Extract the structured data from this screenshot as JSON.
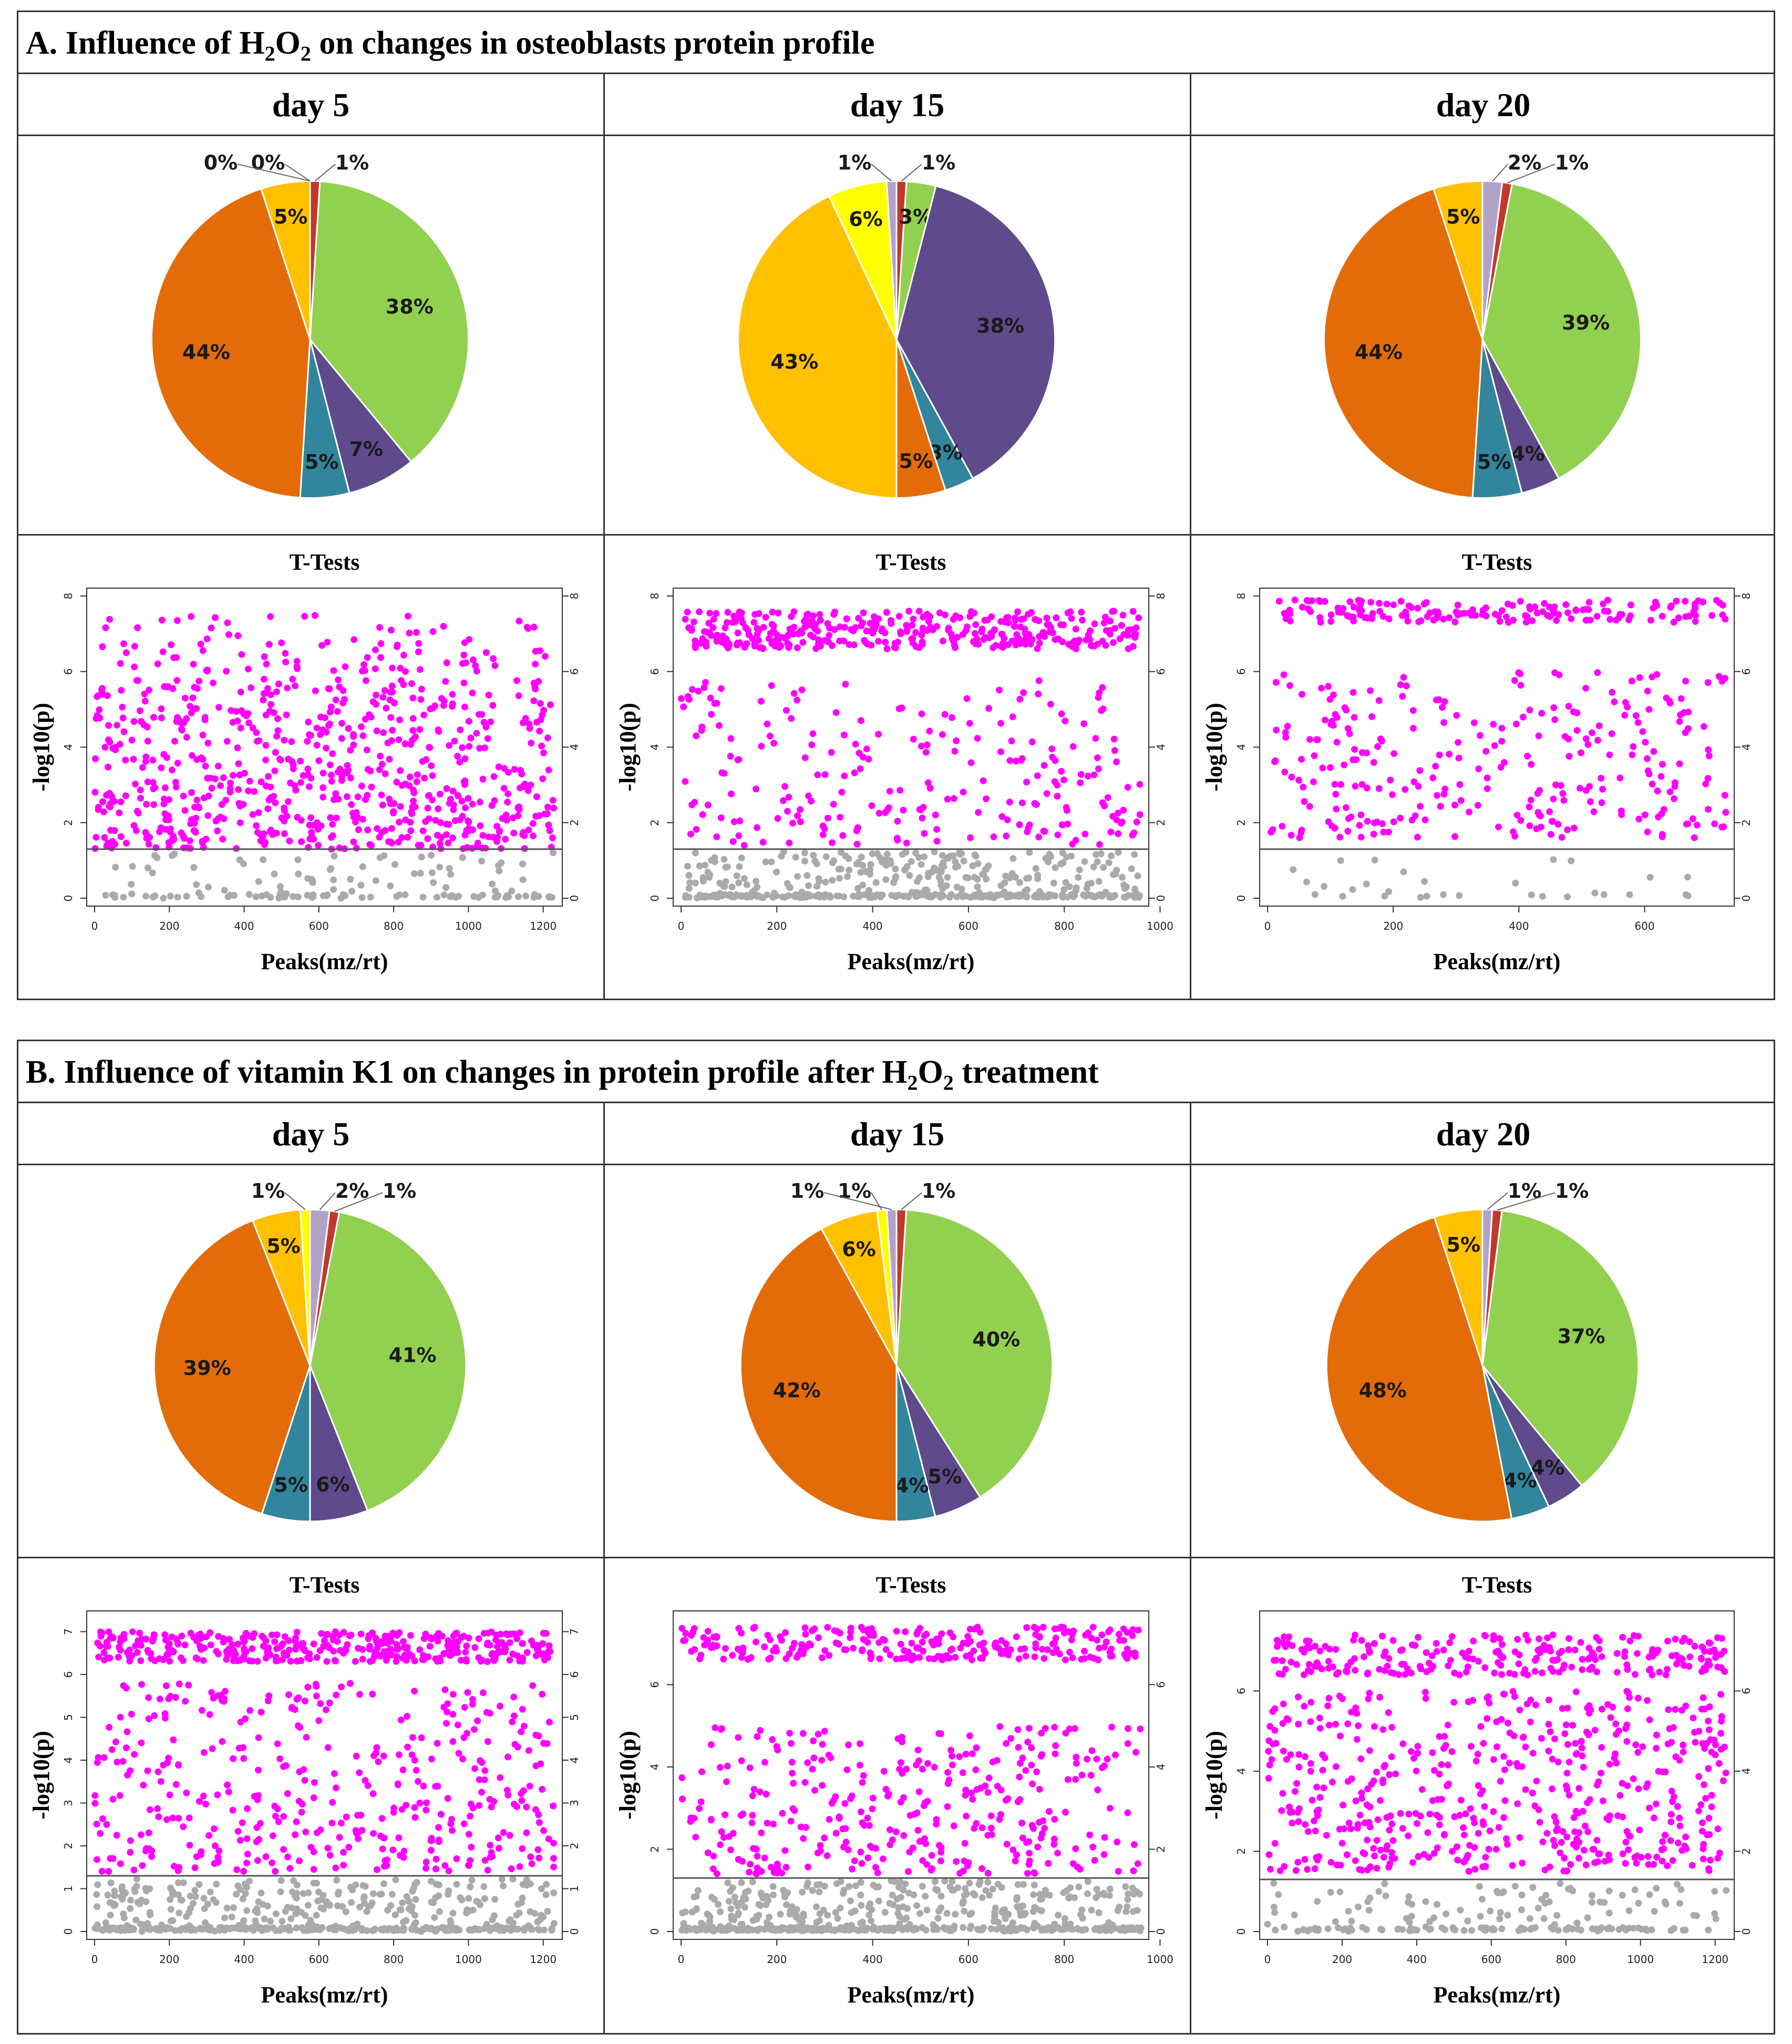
{
  "panels": [
    {
      "title_prefix": "A. Influence of H",
      "sub1": "2",
      "title_mid": "O",
      "sub2": "2",
      "title_suffix": " on changes in osteoblasts protein profile",
      "days": [
        "day 5",
        "day 15",
        "day 20"
      ]
    },
    {
      "title_prefix": "B. Influence of vitamin K1 on changes in protein profile after H",
      "sub1": "2",
      "title_mid": "O",
      "sub2": "2",
      "title_suffix": " treatment",
      "days": [
        "day 5",
        "day 15",
        "day 20"
      ]
    }
  ],
  "colors": {
    "green": "#92D050",
    "purple": "#5F4A8B",
    "teal": "#31859C",
    "orange": "#E36C09",
    "gold": "#FFC000",
    "yellow": "#FFFF00",
    "lavender": "#B3A2C7",
    "red": "#C0392B",
    "magenta": "#FF00FF",
    "gray": "#AAAAAA"
  },
  "chart_data": [
    {
      "type": "pie",
      "panel": "A",
      "title": "day 5",
      "slices": [
        {
          "label": "1%",
          "value": 1,
          "color": "red"
        },
        {
          "label": "38%",
          "value": 38,
          "color": "green"
        },
        {
          "label": "7%",
          "value": 7,
          "color": "purple"
        },
        {
          "label": "5%",
          "value": 5,
          "color": "teal"
        },
        {
          "label": "44%",
          "value": 44,
          "color": "orange"
        },
        {
          "label": "5%",
          "value": 5,
          "color": "gold"
        },
        {
          "label": "0%",
          "value": 0,
          "color": "yellow"
        },
        {
          "label": "0%",
          "value": 0,
          "color": "lavender"
        }
      ]
    },
    {
      "type": "pie",
      "panel": "A",
      "title": "day 15",
      "slices": [
        {
          "label": "1%",
          "value": 1,
          "color": "red"
        },
        {
          "label": "3%",
          "value": 3,
          "color": "green"
        },
        {
          "label": "38%",
          "value": 38,
          "color": "purple"
        },
        {
          "label": "3%",
          "value": 3,
          "color": "teal"
        },
        {
          "label": "5%",
          "value": 5,
          "color": "orange"
        },
        {
          "label": "43%",
          "value": 43,
          "color": "gold"
        },
        {
          "label": "6%",
          "value": 6,
          "color": "yellow"
        },
        {
          "label": "1%",
          "value": 1,
          "color": "lavender"
        }
      ]
    },
    {
      "type": "pie",
      "panel": "A",
      "title": "day 20",
      "slices": [
        {
          "label": "2%",
          "value": 2,
          "color": "lavender"
        },
        {
          "label": "1%",
          "value": 1,
          "color": "red"
        },
        {
          "label": "39%",
          "value": 39,
          "color": "green"
        },
        {
          "label": "4%",
          "value": 4,
          "color": "purple"
        },
        {
          "label": "5%",
          "value": 5,
          "color": "teal"
        },
        {
          "label": "44%",
          "value": 44,
          "color": "orange"
        },
        {
          "label": "5%",
          "value": 5,
          "color": "gold"
        }
      ]
    },
    {
      "type": "scatter",
      "panel": "A",
      "title": "T-Tests",
      "xlabel": "Peaks(mz/rt)",
      "ylabel": "-log10(p)",
      "xlim": [
        0,
        1230
      ],
      "ylim": [
        0,
        8
      ],
      "xticks": [
        0,
        200,
        400,
        600,
        800,
        1000,
        1200
      ],
      "yticks": [
        0,
        2,
        4,
        6,
        8
      ],
      "threshold": 1.3,
      "n": 1230,
      "bands": [
        [
          6.0,
          7.5,
          0.12
        ],
        [
          1.3,
          5.8,
          0.88
        ]
      ],
      "gray_n": 130
    },
    {
      "type": "scatter",
      "panel": "A",
      "title": "T-Tests",
      "xlabel": "Peaks(mz/rt)",
      "ylabel": "-log10(p)",
      "xlim": [
        0,
        960
      ],
      "ylim": [
        0,
        8
      ],
      "xticks": [
        0,
        200,
        400,
        600,
        800,
        1000
      ],
      "yticks": [
        0,
        2,
        4,
        6,
        8
      ],
      "threshold": 1.3,
      "n": 960,
      "bands": [
        [
          6.6,
          7.6,
          0.6
        ],
        [
          1.4,
          5.8,
          0.4
        ]
      ],
      "gray_n": 460
    },
    {
      "type": "scatter",
      "panel": "A",
      "title": "T-Tests",
      "xlabel": "Peaks(mz/rt)",
      "ylabel": "-log10(p)",
      "xlim": [
        0,
        730
      ],
      "ylim": [
        0,
        8
      ],
      "xticks": [
        0,
        200,
        400,
        600
      ],
      "yticks": [
        0,
        2,
        4,
        6,
        8
      ],
      "threshold": 1.3,
      "n": 730,
      "bands": [
        [
          7.3,
          7.9,
          0.35
        ],
        [
          1.6,
          6.0,
          0.65
        ]
      ],
      "gray_n": 30
    },
    {
      "type": "pie",
      "panel": "B",
      "title": "day 5",
      "slices": [
        {
          "label": "2%",
          "value": 2,
          "color": "lavender"
        },
        {
          "label": "1%",
          "value": 1,
          "color": "red"
        },
        {
          "label": "41%",
          "value": 41,
          "color": "green"
        },
        {
          "label": "6%",
          "value": 6,
          "color": "purple"
        },
        {
          "label": "5%",
          "value": 5,
          "color": "teal"
        },
        {
          "label": "39%",
          "value": 39,
          "color": "orange"
        },
        {
          "label": "5%",
          "value": 5,
          "color": "gold"
        },
        {
          "label": "1%",
          "value": 1,
          "color": "yellow"
        }
      ]
    },
    {
      "type": "pie",
      "panel": "B",
      "title": "day 15",
      "slices": [
        {
          "label": "1%",
          "value": 1,
          "color": "red"
        },
        {
          "label": "40%",
          "value": 40,
          "color": "green"
        },
        {
          "label": "5%",
          "value": 5,
          "color": "purple"
        },
        {
          "label": "4%",
          "value": 4,
          "color": "teal"
        },
        {
          "label": "42%",
          "value": 42,
          "color": "orange"
        },
        {
          "label": "6%",
          "value": 6,
          "color": "gold"
        },
        {
          "label": "1%",
          "value": 1,
          "color": "yellow"
        },
        {
          "label": "1%",
          "value": 1,
          "color": "lavender"
        }
      ]
    },
    {
      "type": "pie",
      "panel": "B",
      "title": "day 20",
      "slices": [
        {
          "label": "1%",
          "value": 1,
          "color": "lavender"
        },
        {
          "label": "1%",
          "value": 1,
          "color": "red"
        },
        {
          "label": "37%",
          "value": 37,
          "color": "green"
        },
        {
          "label": "4%",
          "value": 4,
          "color": "purple"
        },
        {
          "label": "4%",
          "value": 4,
          "color": "teal"
        },
        {
          "label": "48%",
          "value": 48,
          "color": "orange"
        },
        {
          "label": "5%",
          "value": 5,
          "color": "gold"
        }
      ]
    },
    {
      "type": "scatter",
      "panel": "B",
      "title": "T-Tests",
      "xlabel": "Peaks(mz/rt)",
      "ylabel": "-log10(p)",
      "xlim": [
        0,
        1230
      ],
      "ylim": [
        0,
        7.3
      ],
      "xticks": [
        0,
        200,
        400,
        600,
        800,
        1000,
        1200
      ],
      "yticks": [
        0,
        1,
        2,
        3,
        4,
        5,
        6,
        7
      ],
      "threshold": 1.3,
      "n": 1230,
      "bands": [
        [
          6.3,
          7.0,
          0.45
        ],
        [
          1.4,
          5.8,
          0.55
        ]
      ],
      "gray_n": 520
    },
    {
      "type": "scatter",
      "panel": "B",
      "title": "T-Tests",
      "xlabel": "Peaks(mz/rt)",
      "ylabel": "-log10(p)",
      "xlim": [
        0,
        960
      ],
      "ylim": [
        0,
        7.6
      ],
      "xticks": [
        0,
        200,
        400,
        600,
        800,
        1000
      ],
      "yticks": [
        0,
        2,
        4,
        6
      ],
      "threshold": 1.3,
      "n": 960,
      "bands": [
        [
          6.6,
          7.4,
          0.45
        ],
        [
          1.4,
          5.0,
          0.55
        ]
      ],
      "gray_n": 560
    },
    {
      "type": "scatter",
      "panel": "B",
      "title": "T-Tests",
      "xlabel": "Peaks(mz/rt)",
      "ylabel": "-log10(p)",
      "xlim": [
        0,
        1230
      ],
      "ylim": [
        0,
        7.8
      ],
      "xticks": [
        0,
        200,
        400,
        600,
        800,
        1000,
        1200
      ],
      "yticks": [
        0,
        2,
        4,
        6
      ],
      "threshold": 1.3,
      "n": 1230,
      "bands": [
        [
          6.4,
          7.4,
          0.35
        ],
        [
          1.5,
          6.0,
          0.65
        ]
      ],
      "gray_n": 180
    }
  ]
}
